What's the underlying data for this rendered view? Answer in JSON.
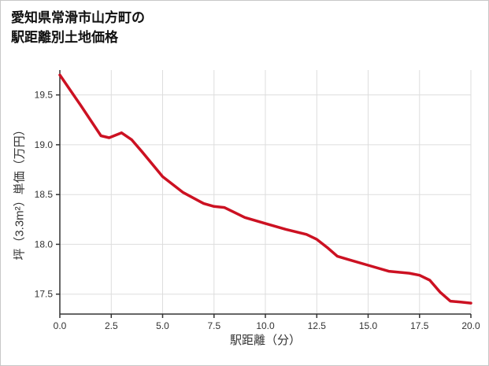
{
  "title": {
    "line1": "愛知県常滑市山方町の",
    "line2": "駅距離別土地価格"
  },
  "chart_data": {
    "type": "line",
    "title": "愛知県常滑市山方町の駅距離別土地価格",
    "xlabel": "駅距離（分）",
    "ylabel": "坪（3.3m²）単価（万円）",
    "xlim": [
      0,
      20
    ],
    "ylim": [
      17.3,
      19.75
    ],
    "xticks": [
      0,
      2.5,
      5,
      7.5,
      10,
      12.5,
      15,
      17.5,
      20
    ],
    "yticks": [
      17.5,
      18.0,
      18.5,
      19.0,
      19.5
    ],
    "grid": true,
    "legend": "none",
    "line_color": "#cc1122",
    "axis_color": "#333333",
    "grid_color": "#dddddd",
    "points": [
      [
        0,
        19.7
      ],
      [
        1,
        19.4
      ],
      [
        2,
        19.09
      ],
      [
        2.4,
        19.07
      ],
      [
        3,
        19.12
      ],
      [
        3.5,
        19.05
      ],
      [
        4,
        18.93
      ],
      [
        5,
        18.68
      ],
      [
        6,
        18.52
      ],
      [
        7,
        18.41
      ],
      [
        7.5,
        18.38
      ],
      [
        8,
        18.37
      ],
      [
        8.5,
        18.32
      ],
      [
        9,
        18.27
      ],
      [
        10,
        18.21
      ],
      [
        11,
        18.15
      ],
      [
        12,
        18.1
      ],
      [
        12.5,
        18.05
      ],
      [
        13,
        17.97
      ],
      [
        13.5,
        17.88
      ],
      [
        14,
        17.85
      ],
      [
        15,
        17.79
      ],
      [
        16,
        17.73
      ],
      [
        16.5,
        17.72
      ],
      [
        17,
        17.71
      ],
      [
        17.5,
        17.69
      ],
      [
        18,
        17.64
      ],
      [
        18.5,
        17.52
      ],
      [
        19,
        17.43
      ],
      [
        19.5,
        17.42
      ],
      [
        20,
        17.41
      ]
    ]
  }
}
